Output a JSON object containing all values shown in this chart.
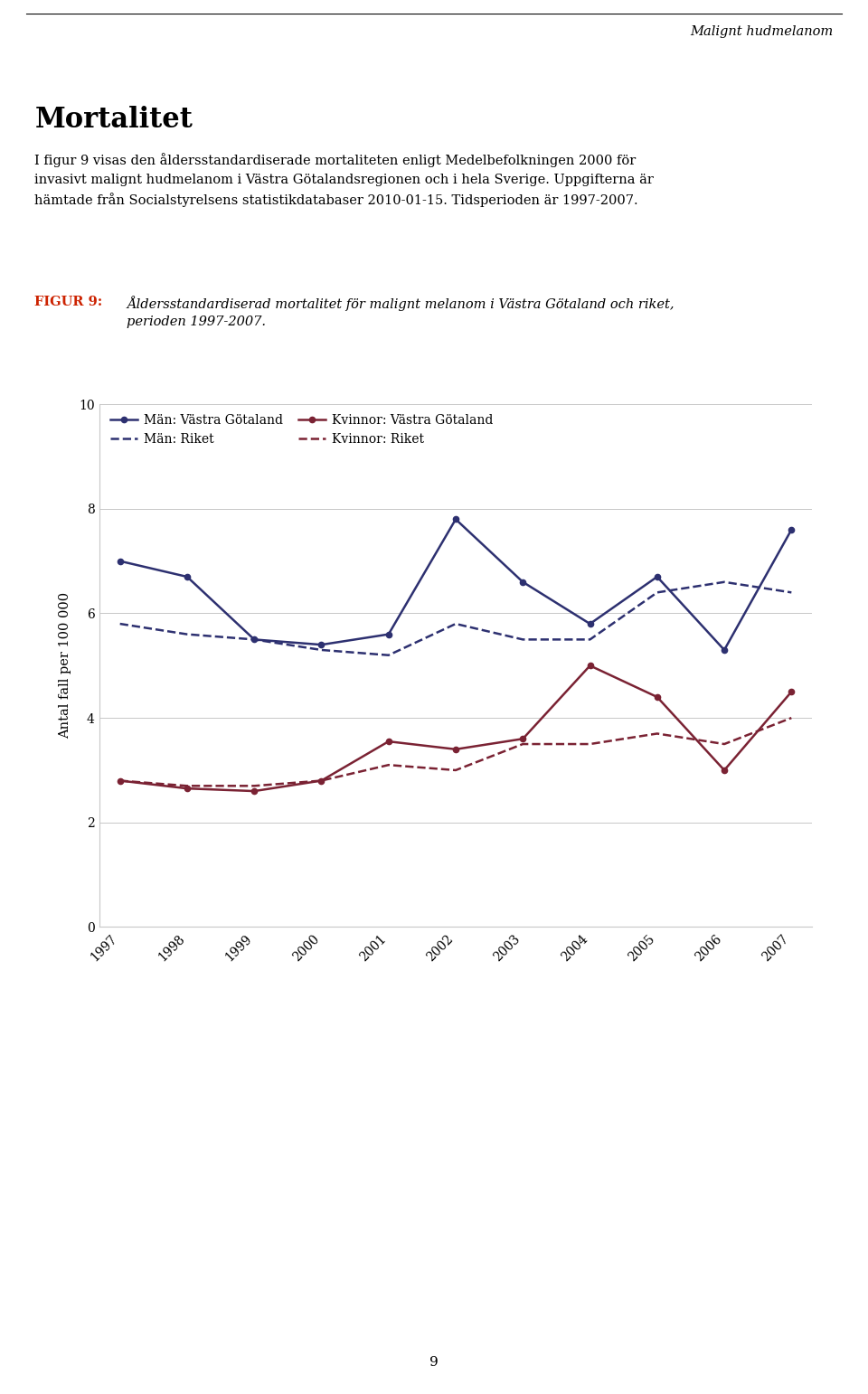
{
  "years": [
    1997,
    1998,
    1999,
    2000,
    2001,
    2002,
    2003,
    2004,
    2005,
    2006,
    2007
  ],
  "man_vg": [
    7.0,
    6.7,
    5.5,
    5.4,
    5.6,
    7.8,
    6.6,
    5.8,
    6.7,
    5.3,
    7.6
  ],
  "man_riket": [
    5.8,
    5.6,
    5.5,
    5.3,
    5.2,
    5.8,
    5.5,
    5.5,
    6.4,
    6.6,
    6.4
  ],
  "kvinna_vg": [
    2.8,
    2.65,
    2.6,
    2.8,
    3.55,
    3.4,
    3.6,
    5.0,
    4.4,
    3.0,
    4.5
  ],
  "kvinna_riket": [
    2.8,
    2.7,
    2.7,
    2.8,
    3.1,
    3.0,
    3.5,
    3.5,
    3.7,
    3.5,
    4.0
  ],
  "color_man": "#2d3070",
  "color_kvinna": "#7a2233",
  "ylim": [
    0,
    10
  ],
  "yticks": [
    0,
    2,
    4,
    6,
    8,
    10
  ],
  "ylabel": "Antal fall per 100 000",
  "legend_man_vg": "Män: Västra Götaland",
  "legend_man_riket": "Män: Riket",
  "legend_kvinna_vg": "Kvinnor: Västra Götaland",
  "legend_kvinna_riket": "Kvinnor: Riket",
  "header_right": "Malignt hudmelanom",
  "heading": "Mortalitet",
  "body_text": "I figur 9 visas den åldersstandardiserade mortaliteten enligt Medelbefolkningen 2000 för\ninvasivt malignt hudmelanom i Västra Götalandsregionen och i hela Sverige. Uppgifterna är\nhämtade från Socialstyrelsens statistikdatabaser 2010-01-15. Tidsperioden är 1997-2007.",
  "figur_label": "FIGUR 9:",
  "figur_caption": "Åldersstandardiserad mortalitet för malignt melanom i Västra Götaland och riket,\nperioden 1997-2007.",
  "page_number": "9",
  "background_color": "#ffffff",
  "figur_label_color": "#cc2200"
}
